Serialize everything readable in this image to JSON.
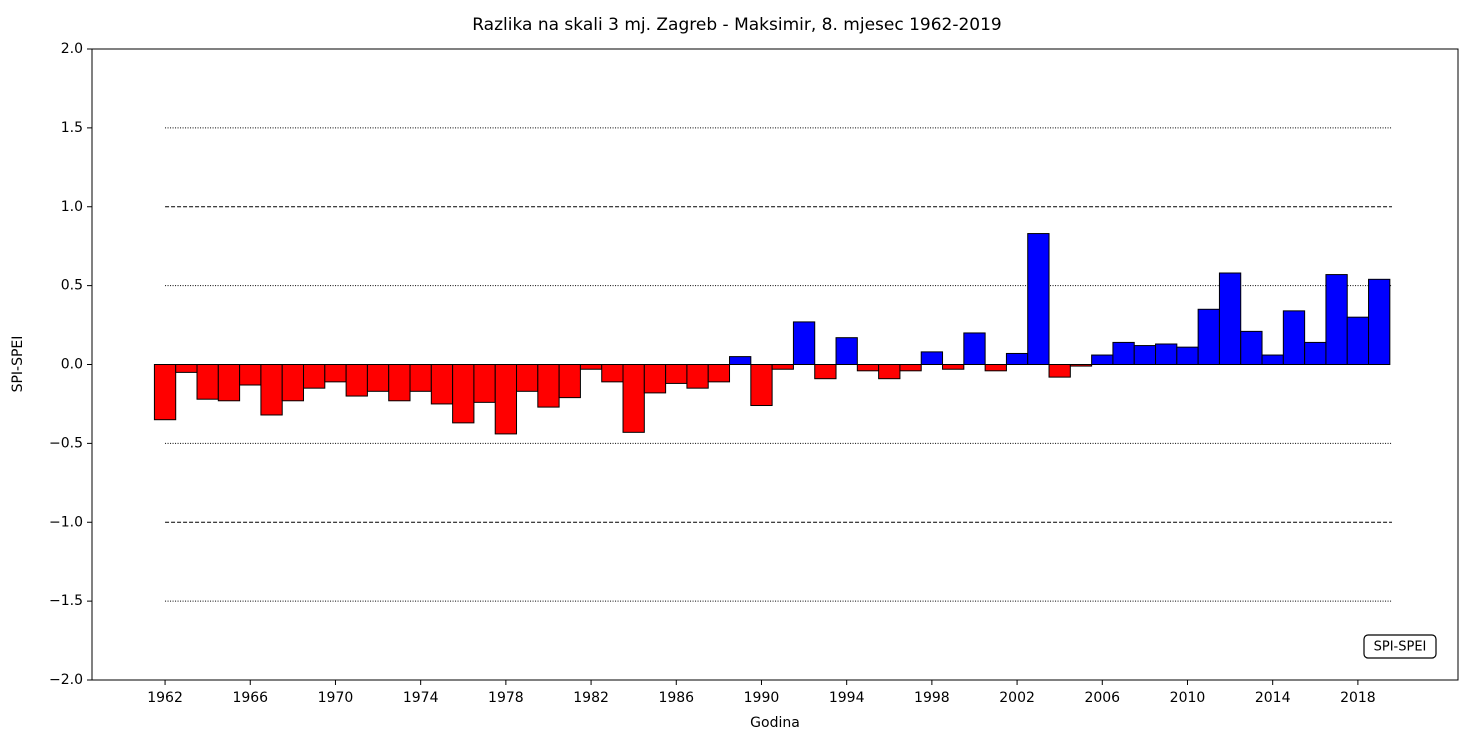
{
  "chart_data": {
    "type": "bar",
    "title": "Razlika na skali 3 mj. Zagreb - Maksimir, 8. mjesec 1962-2019",
    "x_label": "Godina",
    "y_label": "SPI-SPEI",
    "x": [
      1962,
      1963,
      1964,
      1965,
      1966,
      1967,
      1968,
      1969,
      1970,
      1971,
      1972,
      1973,
      1974,
      1975,
      1976,
      1977,
      1978,
      1979,
      1980,
      1981,
      1982,
      1983,
      1984,
      1985,
      1986,
      1987,
      1988,
      1989,
      1990,
      1991,
      1992,
      1993,
      1994,
      1995,
      1996,
      1997,
      1998,
      1999,
      2000,
      2001,
      2002,
      2003,
      2004,
      2005,
      2006,
      2007,
      2008,
      2009,
      2010,
      2011,
      2012,
      2013,
      2014,
      2015,
      2016,
      2017,
      2018,
      2019
    ],
    "values": [
      -0.35,
      -0.05,
      -0.22,
      -0.23,
      -0.13,
      -0.32,
      -0.23,
      -0.15,
      -0.11,
      -0.2,
      -0.17,
      -0.23,
      -0.17,
      -0.25,
      -0.37,
      -0.24,
      -0.44,
      -0.17,
      -0.27,
      -0.21,
      -0.03,
      -0.11,
      -0.43,
      -0.18,
      -0.12,
      -0.15,
      -0.11,
      0.05,
      -0.26,
      -0.03,
      0.27,
      -0.09,
      0.17,
      -0.04,
      -0.09,
      -0.04,
      0.08,
      -0.03,
      0.2,
      -0.04,
      0.07,
      0.83,
      -0.08,
      -0.01,
      0.06,
      0.14,
      0.12,
      0.13,
      0.11,
      0.35,
      0.58,
      0.21,
      0.06,
      0.34,
      0.14,
      0.57,
      0.3,
      0.54
    ],
    "positive_color": "#0000ff",
    "negative_color": "#ff0000",
    "bar_width": 1,
    "xlim": [
      1958.57,
      2022.7
    ],
    "ylim": [
      -2.0,
      2.0
    ],
    "xticks": [
      1962,
      1966,
      1970,
      1974,
      1978,
      1982,
      1986,
      1990,
      1994,
      1998,
      2002,
      2006,
      2010,
      2014,
      2018
    ],
    "yticks": [
      {
        "value": -2.0,
        "label": "−2.0"
      },
      {
        "value": -1.5,
        "label": "−1.5"
      },
      {
        "value": -1.0,
        "label": "−1.0"
      },
      {
        "value": -0.5,
        "label": "−0.5"
      },
      {
        "value": 0.0,
        "label": "0.0"
      },
      0.5,
      {
        "value": 1.0,
        "label": "1.0"
      },
      1.5,
      {
        "value": 2.0,
        "label": "2.0"
      }
    ],
    "reference_lines": [
      {
        "y": 1.5,
        "style": "dotted"
      },
      {
        "y": 1.0,
        "style": "dashed"
      },
      {
        "y": 0.5,
        "style": "dotted"
      },
      {
        "y": -0.5,
        "style": "dotted"
      },
      {
        "y": -1.0,
        "style": "dashed"
      },
      {
        "y": -1.5,
        "style": "dotted"
      }
    ],
    "legend": {
      "label": "SPI-SPEI",
      "loc": "lower right"
    }
  }
}
